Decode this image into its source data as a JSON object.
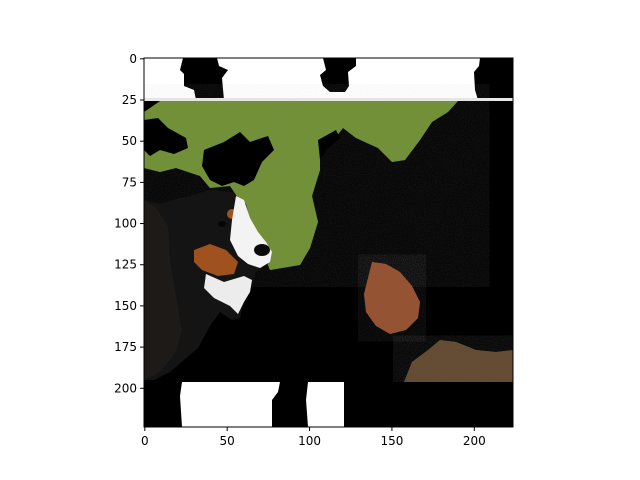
{
  "chart_data": {
    "type": "image",
    "title": "",
    "xlabel": "",
    "ylabel": "",
    "xlim": [
      0,
      224
    ],
    "ylim": [
      224,
      0
    ],
    "x_ticks": [
      0,
      50,
      100,
      150,
      200
    ],
    "y_ticks": [
      0,
      25,
      50,
      75,
      100,
      125,
      150,
      175,
      200
    ],
    "x_tick_labels": [
      "0",
      "50",
      "100",
      "150",
      "200"
    ],
    "y_tick_labels": [
      "0",
      "25",
      "50",
      "75",
      "100",
      "125",
      "150",
      "175",
      "200"
    ],
    "grid": false,
    "image_content": {
      "subject": "Bernese mountain dog head on grass with masked (black) regions",
      "regions": [
        {
          "label": "white-band-top",
          "x": [
            0,
            224
          ],
          "y": [
            0,
            26
          ],
          "color": "#ffffff"
        },
        {
          "label": "grass",
          "x": [
            0,
            190
          ],
          "y": [
            26,
            130
          ],
          "color": "#6b8a35"
        },
        {
          "label": "white-band-bottom",
          "x": [
            0,
            224
          ],
          "y": [
            196,
            224
          ],
          "color": "#ffffff"
        },
        {
          "label": "leaf",
          "x": [
            133,
            168
          ],
          "y": [
            122,
            168
          ],
          "color": "#8a4a2c"
        },
        {
          "label": "soil-patch",
          "x": [
            160,
            224
          ],
          "y": [
            168,
            196
          ],
          "color": "#5a4430"
        }
      ],
      "colors": {
        "mask": "#000000",
        "grass": "#6b8a35",
        "fur_black": "#141414",
        "fur_tan": "#a0521e",
        "fur_white": "#f3f3f3",
        "leaf": "#8a4a2c",
        "soil": "#5a4430"
      }
    }
  }
}
